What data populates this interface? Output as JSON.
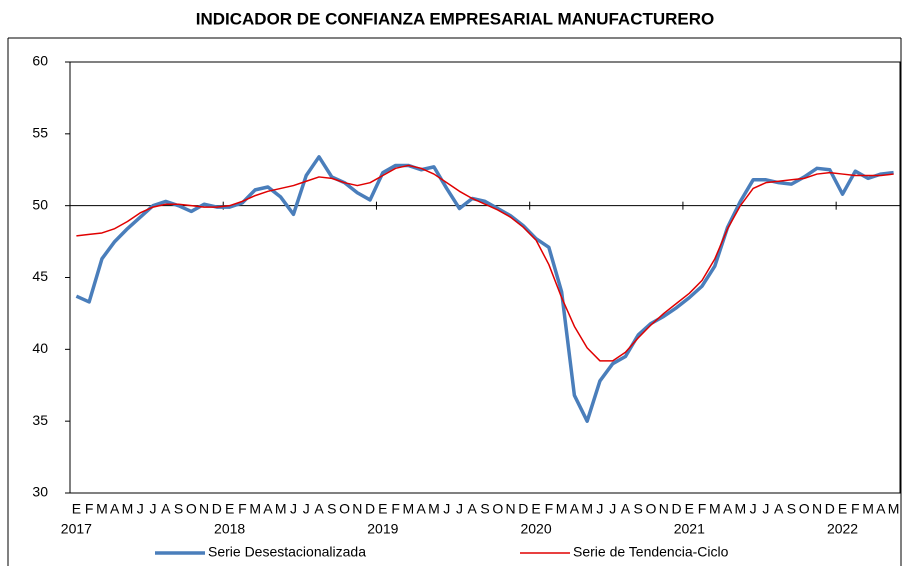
{
  "chart_data": {
    "type": "line",
    "title": "INDICADOR DE CONFIANZA EMPRESARIAL MANUFACTURERO",
    "categories": [
      "E",
      "F",
      "M",
      "A",
      "M",
      "J",
      "J",
      "A",
      "S",
      "O",
      "N",
      "D",
      "E",
      "F",
      "M",
      "A",
      "M",
      "J",
      "J",
      "A",
      "S",
      "O",
      "N",
      "D",
      "E",
      "F",
      "M",
      "A",
      "M",
      "J",
      "J",
      "A",
      "S",
      "O",
      "N",
      "D",
      "E",
      "F",
      "M",
      "A",
      "M",
      "J",
      "J",
      "A",
      "S",
      "O",
      "N",
      "D",
      "E",
      "F",
      "M",
      "A",
      "M",
      "J",
      "J",
      "A",
      "S",
      "O",
      "N",
      "D",
      "E",
      "F",
      "M",
      "A",
      "M"
    ],
    "years": [
      "2017",
      null,
      null,
      null,
      null,
      null,
      null,
      null,
      null,
      null,
      null,
      null,
      "2018",
      null,
      null,
      null,
      null,
      null,
      null,
      null,
      null,
      null,
      null,
      null,
      "2019",
      null,
      null,
      null,
      null,
      null,
      null,
      null,
      null,
      null,
      null,
      null,
      "2020",
      null,
      null,
      null,
      null,
      null,
      null,
      null,
      null,
      null,
      null,
      null,
      "2021",
      null,
      null,
      null,
      null,
      null,
      null,
      null,
      null,
      null,
      null,
      null,
      "2022",
      null,
      null,
      null,
      null
    ],
    "series": [
      {
        "name": "Serie Desestacionalizada",
        "color": "#4a7ebb",
        "values": [
          43.7,
          43.3,
          46.3,
          47.5,
          48.4,
          49.2,
          50.0,
          50.3,
          50.0,
          49.6,
          50.1,
          49.9,
          49.9,
          50.2,
          51.1,
          51.3,
          50.6,
          49.4,
          52.1,
          53.4,
          52.0,
          51.6,
          50.9,
          50.4,
          52.3,
          52.8,
          52.8,
          52.5,
          52.7,
          51.2,
          49.8,
          50.5,
          50.3,
          49.8,
          49.3,
          48.6,
          47.7,
          47.1,
          44.0,
          36.8,
          35.0,
          37.8,
          39.0,
          39.5,
          41.0,
          41.8,
          42.3,
          42.9,
          43.6,
          44.4,
          45.8,
          48.5,
          50.3,
          51.8,
          51.8,
          51.6,
          51.5,
          52.0,
          52.6,
          52.5,
          50.8,
          52.4,
          51.9,
          52.2,
          52.3
        ]
      },
      {
        "name": "Serie de Tendencia-Ciclo",
        "color": "#e00000",
        "values": [
          47.9,
          48.0,
          48.1,
          48.4,
          48.9,
          49.5,
          49.9,
          50.1,
          50.1,
          50.0,
          49.9,
          49.9,
          50.0,
          50.3,
          50.7,
          51.0,
          51.2,
          51.4,
          51.7,
          52.0,
          51.9,
          51.6,
          51.4,
          51.6,
          52.1,
          52.6,
          52.8,
          52.6,
          52.2,
          51.6,
          51.0,
          50.5,
          50.1,
          49.7,
          49.2,
          48.5,
          47.6,
          45.9,
          43.6,
          41.6,
          40.1,
          39.2,
          39.2,
          39.8,
          40.8,
          41.7,
          42.5,
          43.2,
          43.9,
          44.8,
          46.3,
          48.4,
          50.0,
          51.2,
          51.6,
          51.7,
          51.8,
          51.9,
          52.2,
          52.3,
          52.2,
          52.1,
          52.1,
          52.1,
          52.2
        ]
      }
    ],
    "ylim": [
      30,
      60
    ],
    "yticks": [
      30,
      35,
      40,
      45,
      50,
      55,
      60
    ],
    "x_axis_at": 50
  }
}
